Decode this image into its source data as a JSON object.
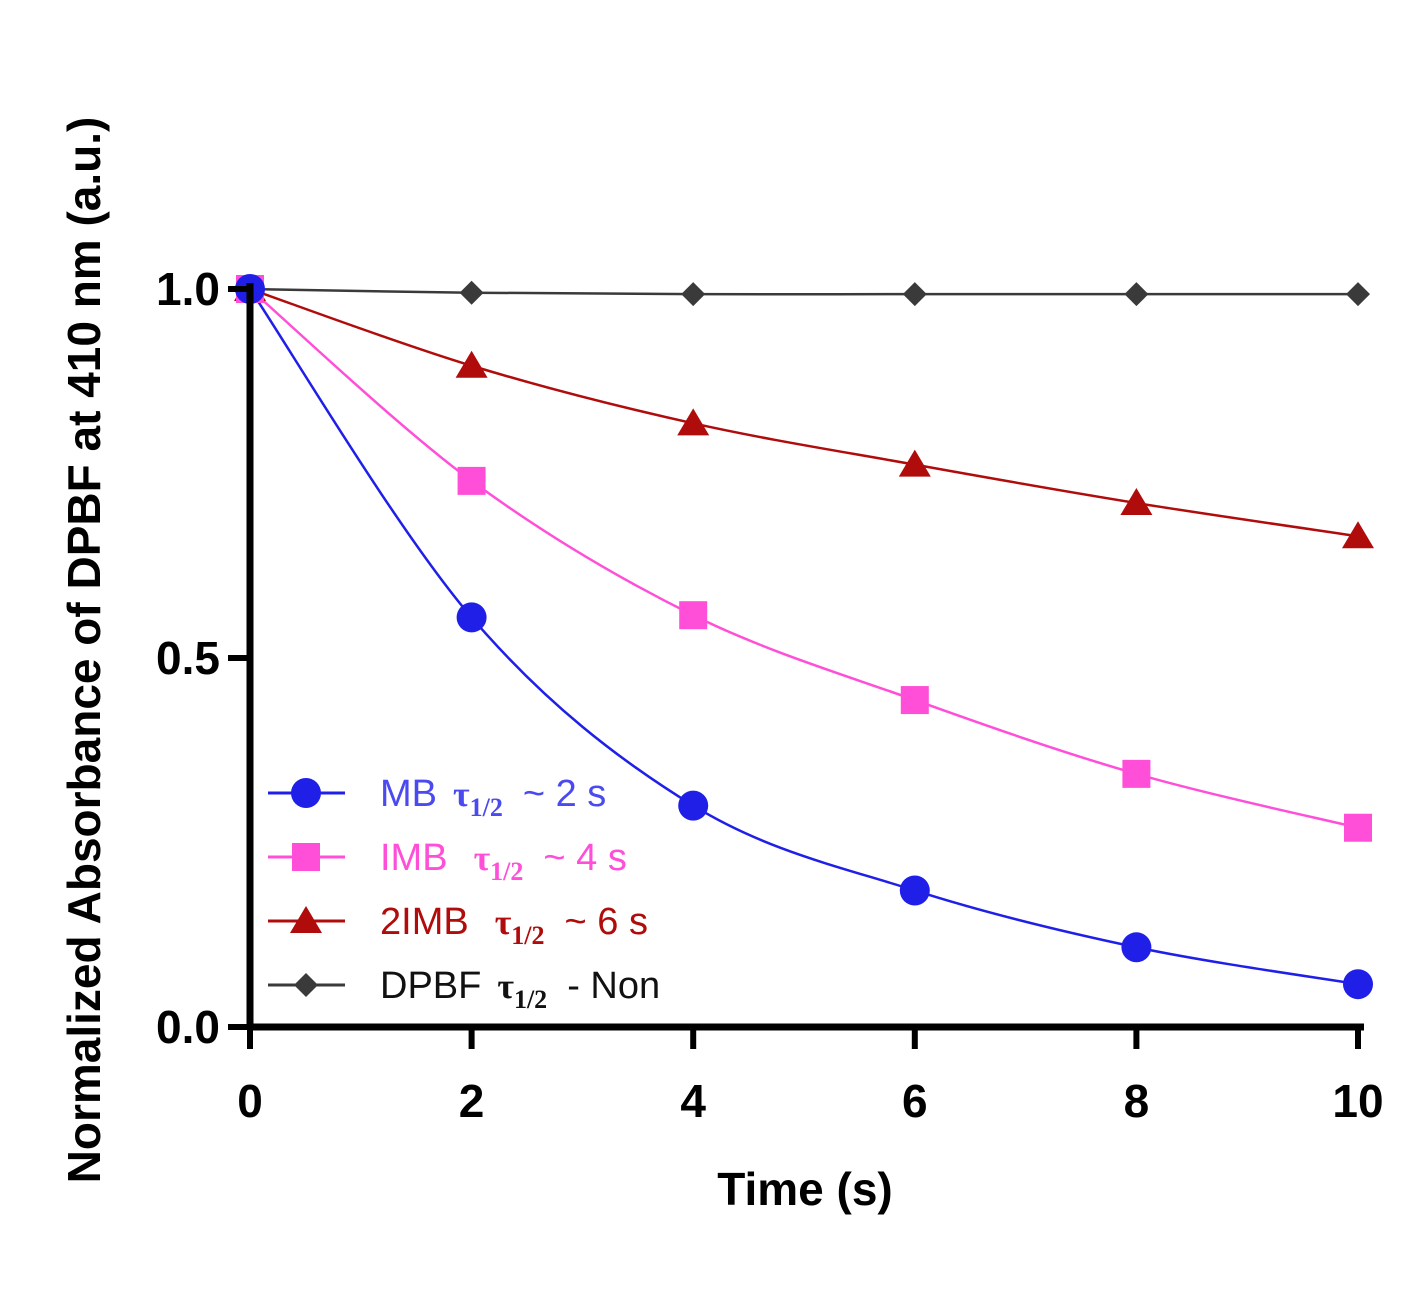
{
  "chart_data": {
    "type": "line",
    "title": "",
    "xlabel": "Time (s)",
    "ylabel": "Normalized Absorbance of DPBF at 410 nm (a.u.)",
    "x": [
      0,
      2,
      4,
      6,
      8,
      10
    ],
    "xticks": [
      "0",
      "2",
      "4",
      "6",
      "8",
      "10"
    ],
    "yticks": [
      "0.0",
      "0.5",
      "1.0"
    ],
    "xlim": [
      0,
      10
    ],
    "ylim": [
      0,
      1.0
    ],
    "grid": false,
    "legend_position": "bottom-left",
    "series": [
      {
        "name": "MB",
        "tau_symbol": "τ",
        "tau_subscript": "1/2",
        "suffix": "~ 2 s",
        "color": "#1f1fe8",
        "text_color": "#4a4af0",
        "marker": "circle",
        "values": [
          1.0,
          0.555,
          0.3,
          0.185,
          0.108,
          0.058
        ]
      },
      {
        "name": "IMB",
        "tau_symbol": "τ",
        "tau_subscript": "1/2",
        "suffix": "~  4 s",
        "color": "#ff4fd8",
        "text_color": "#ff4fd8",
        "marker": "square",
        "values": [
          1.0,
          0.74,
          0.558,
          0.443,
          0.343,
          0.27
        ]
      },
      {
        "name": "2IMB",
        "tau_symbol": "τ",
        "tau_subscript": "1/2",
        "suffix": "~ 6 s",
        "color": "#b00c0c",
        "text_color": "#b00c0c",
        "marker": "triangle",
        "values": [
          1.0,
          0.896,
          0.818,
          0.762,
          0.71,
          0.665
        ]
      },
      {
        "name": "DPBF",
        "tau_symbol": "τ",
        "tau_subscript": "1/2",
        "suffix": "- Non",
        "color": "#3a3a3a",
        "text_color": "#111111",
        "marker": "diamond",
        "values": [
          1.0,
          0.995,
          0.993,
          0.993,
          0.993,
          0.993
        ]
      }
    ]
  }
}
